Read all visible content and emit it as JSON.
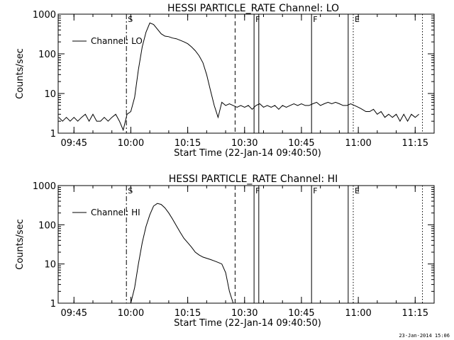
{
  "chart_data": [
    {
      "type": "line",
      "title": "HESSI PARTICLE_RATE Channel: LO",
      "xlabel": "Start Time (22-Jan-14 09:40:50)",
      "ylabel": "Counts/sec",
      "yscale": "log",
      "ylim": [
        1,
        1000
      ],
      "yticks": [
        "1",
        "10",
        "100",
        "1000"
      ],
      "xlim": [
        "09:40:50",
        "11:20:00"
      ],
      "xticks": [
        "09:45",
        "10:00",
        "10:15",
        "10:30",
        "10:45",
        "11:00",
        "11:15"
      ],
      "legend": [
        "Channel: LO"
      ],
      "legend_position": "top-left",
      "series": [
        {
          "name": "Channel: LO",
          "x": [
            "09:41",
            "09:42",
            "09:43",
            "09:44",
            "09:45",
            "09:46",
            "09:47",
            "09:48",
            "09:49",
            "09:50",
            "09:51",
            "09:52",
            "09:53",
            "09:54",
            "09:55",
            "09:56",
            "09:57",
            "09:58",
            "09:59",
            "10:00",
            "10:01",
            "10:02",
            "10:03",
            "10:04",
            "10:05",
            "10:06",
            "10:07",
            "10:08",
            "10:09",
            "10:10",
            "10:11",
            "10:12",
            "10:13",
            "10:14",
            "10:15",
            "10:16",
            "10:17",
            "10:18",
            "10:19",
            "10:20",
            "10:21",
            "10:22",
            "10:23",
            "10:24",
            "10:25",
            "10:26",
            "10:27",
            "10:28",
            "10:29",
            "10:30",
            "10:31",
            "10:32",
            "10:33",
            "10:34",
            "10:35",
            "10:36",
            "10:37",
            "10:38",
            "10:39",
            "10:40",
            "10:41",
            "10:42",
            "10:43",
            "10:44",
            "10:45",
            "10:46",
            "10:47",
            "10:48",
            "10:49",
            "10:50",
            "10:51",
            "10:52",
            "10:53",
            "10:54",
            "10:55",
            "10:56",
            "10:57",
            "10:58",
            "10:59",
            "11:00",
            "11:01",
            "11:02",
            "11:03",
            "11:04",
            "11:05",
            "11:06",
            "11:07",
            "11:08",
            "11:09",
            "11:10",
            "11:11",
            "11:12",
            "11:13",
            "11:14",
            "11:15",
            "11:16"
          ],
          "values": [
            2.5,
            2,
            2.5,
            2,
            2.5,
            2,
            2.5,
            3,
            2,
            3,
            2,
            2,
            2.5,
            2,
            2.5,
            3,
            2,
            1.2,
            3,
            3.5,
            8,
            40,
            150,
            350,
            600,
            550,
            420,
            320,
            280,
            270,
            250,
            240,
            220,
            200,
            180,
            150,
            120,
            90,
            60,
            30,
            12,
            5,
            2.5,
            6,
            5,
            5.5,
            5,
            4.5,
            5,
            4.5,
            5,
            4,
            5,
            5.5,
            4.5,
            5,
            4.5,
            5,
            4,
            5,
            4.5,
            5,
            5.5,
            5,
            5.5,
            5,
            5,
            5.5,
            6,
            5,
            5.5,
            6,
            5.5,
            6,
            5.5,
            5,
            5,
            5.5,
            5,
            4.5,
            4,
            3.5,
            3.5,
            4,
            3,
            3.5,
            2.5,
            3,
            2.5,
            3,
            2,
            3,
            2,
            3,
            2.5,
            3
          ]
        }
      ],
      "markers": [
        {
          "time": "09:58:50",
          "style": "dash-dot",
          "label": "S"
        },
        {
          "time": "10:27:30",
          "style": "dashed",
          "label": ""
        },
        {
          "time": "10:32:30",
          "style": "solid",
          "label": "F"
        },
        {
          "time": "10:33:45",
          "style": "solid",
          "label": ""
        },
        {
          "time": "10:47:40",
          "style": "solid",
          "label": "F"
        },
        {
          "time": "10:57:20",
          "style": "solid",
          "label": ""
        },
        {
          "time": "10:58:40",
          "style": "dotted",
          "label": "E"
        },
        {
          "time": "11:16:55",
          "style": "dotted",
          "label": ""
        }
      ]
    },
    {
      "type": "line",
      "title": "HESSI PARTICLE_RATE Channel: HI",
      "xlabel": "Start Time (22-Jan-14 09:40:50)",
      "ylabel": "Counts/sec",
      "yscale": "log",
      "ylim": [
        1,
        1000
      ],
      "yticks": [
        "1",
        "10",
        "100",
        "1000"
      ],
      "xlim": [
        "09:40:50",
        "11:20:00"
      ],
      "xticks": [
        "09:45",
        "10:00",
        "10:15",
        "10:30",
        "10:45",
        "11:00",
        "11:15"
      ],
      "legend": [
        "Channel: HI"
      ],
      "legend_position": "top-left",
      "series": [
        {
          "name": "Channel: HI",
          "x": [
            "10:00",
            "10:01",
            "10:02",
            "10:03",
            "10:04",
            "10:05",
            "10:06",
            "10:07",
            "10:08",
            "10:09",
            "10:10",
            "10:11",
            "10:12",
            "10:13",
            "10:14",
            "10:15",
            "10:16",
            "10:17",
            "10:18",
            "10:19",
            "10:20",
            "10:21",
            "10:22",
            "10:23",
            "10:24",
            "10:25",
            "10:26",
            "10:27"
          ],
          "values": [
            1,
            2.5,
            10,
            35,
            90,
            180,
            300,
            350,
            330,
            270,
            200,
            140,
            95,
            65,
            45,
            35,
            27,
            20,
            17,
            15,
            14,
            13,
            12,
            11,
            10,
            6,
            2,
            1
          ]
        }
      ],
      "markers": [
        {
          "time": "09:58:50",
          "style": "dash-dot",
          "label": "S"
        },
        {
          "time": "10:27:30",
          "style": "dashed",
          "label": ""
        },
        {
          "time": "10:32:30",
          "style": "solid",
          "label": "F"
        },
        {
          "time": "10:33:45",
          "style": "solid",
          "label": ""
        },
        {
          "time": "10:47:40",
          "style": "solid",
          "label": "F"
        },
        {
          "time": "10:57:20",
          "style": "solid",
          "label": ""
        },
        {
          "time": "10:58:40",
          "style": "dotted",
          "label": "E"
        },
        {
          "time": "11:16:55",
          "style": "dotted",
          "label": ""
        }
      ]
    }
  ],
  "footer": {
    "timestamp": "23-Jan-2014 15:06"
  }
}
